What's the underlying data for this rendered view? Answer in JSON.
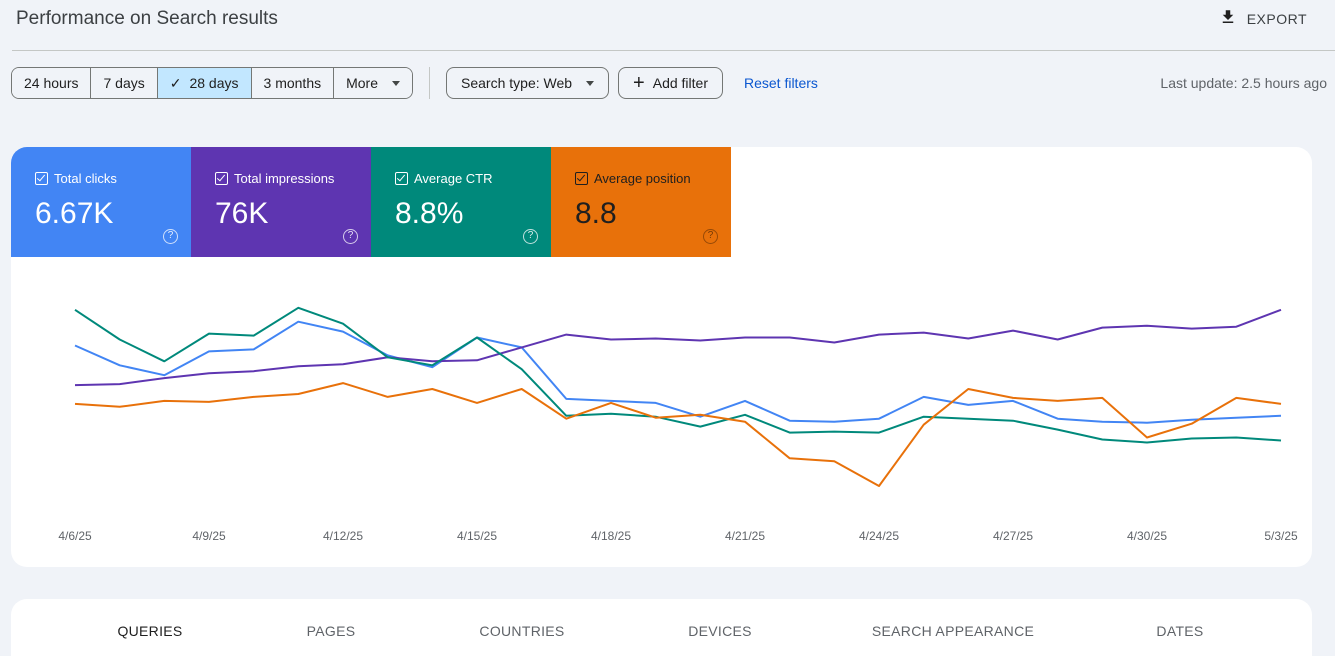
{
  "header": {
    "title": "Performance on Search results",
    "export_label": "EXPORT"
  },
  "filters": {
    "ranges": [
      {
        "label": "24 hours",
        "active": false
      },
      {
        "label": "7 days",
        "active": false
      },
      {
        "label": "28 days",
        "active": true
      },
      {
        "label": "3 months",
        "active": false
      },
      {
        "label": "More",
        "active": false,
        "dropdown": true
      }
    ],
    "search_type": "Search type: Web",
    "add_filter": "Add filter",
    "reset": "Reset filters",
    "last_update": "Last update: 2.5 hours ago"
  },
  "metrics": [
    {
      "label": "Total clicks",
      "value": "6.67K",
      "color": "#4285f4",
      "checked": true
    },
    {
      "label": "Total impressions",
      "value": "76K",
      "color": "#5e35b1",
      "checked": true
    },
    {
      "label": "Average CTR",
      "value": "8.8%",
      "color": "#00897b",
      "checked": true
    },
    {
      "label": "Average position",
      "value": "8.8",
      "color": "#e8710a",
      "checked": true
    }
  ],
  "chart_data": {
    "type": "line",
    "x": [
      "4/6/25",
      "4/7/25",
      "4/8/25",
      "4/9/25",
      "4/10/25",
      "4/11/25",
      "4/12/25",
      "4/13/25",
      "4/14/25",
      "4/15/25",
      "4/16/25",
      "4/17/25",
      "4/18/25",
      "4/19/25",
      "4/20/25",
      "4/21/25",
      "4/22/25",
      "4/23/25",
      "4/24/25",
      "4/25/25",
      "4/26/25",
      "4/27/25",
      "4/28/25",
      "4/29/25",
      "4/30/25",
      "5/1/25",
      "5/2/25",
      "5/3/25"
    ],
    "tick_labels": [
      "4/6/25",
      "4/9/25",
      "4/12/25",
      "4/15/25",
      "4/18/25",
      "4/21/25",
      "4/24/25",
      "4/27/25",
      "4/30/25",
      "5/3/25"
    ],
    "y_axis_visible": false,
    "series": [
      {
        "name": "Total clicks",
        "color": "#4285f4",
        "values": [
          0.73,
          0.63,
          0.58,
          0.7,
          0.71,
          0.85,
          0.8,
          0.68,
          0.62,
          0.77,
          0.72,
          0.46,
          0.45,
          0.44,
          0.37,
          0.45,
          0.35,
          0.345,
          0.36,
          0.47,
          0.43,
          0.45,
          0.36,
          0.345,
          0.34,
          0.355,
          0.365,
          0.375
        ]
      },
      {
        "name": "Total impressions",
        "color": "#5e35b1",
        "values": [
          0.53,
          0.535,
          0.565,
          0.59,
          0.6,
          0.625,
          0.635,
          0.67,
          0.65,
          0.655,
          0.72,
          0.785,
          0.76,
          0.765,
          0.755,
          0.77,
          0.77,
          0.745,
          0.785,
          0.795,
          0.765,
          0.805,
          0.76,
          0.82,
          0.83,
          0.815,
          0.825,
          0.91
        ]
      },
      {
        "name": "Average CTR",
        "color": "#00897b",
        "values": [
          0.91,
          0.76,
          0.65,
          0.79,
          0.78,
          0.92,
          0.84,
          0.67,
          0.63,
          0.77,
          0.61,
          0.375,
          0.385,
          0.37,
          0.32,
          0.38,
          0.29,
          0.295,
          0.29,
          0.37,
          0.36,
          0.35,
          0.305,
          0.255,
          0.24,
          0.26,
          0.265,
          0.25
        ]
      },
      {
        "name": "Average position",
        "color": "#e8710a",
        "values": [
          0.435,
          0.42,
          0.45,
          0.445,
          0.47,
          0.485,
          0.54,
          0.47,
          0.51,
          0.44,
          0.51,
          0.36,
          0.44,
          0.365,
          0.38,
          0.345,
          0.16,
          0.145,
          0.02,
          0.33,
          0.51,
          0.465,
          0.45,
          0.465,
          0.265,
          0.335,
          0.465,
          0.435
        ]
      }
    ]
  },
  "tabs": [
    {
      "label": "QUERIES",
      "active": true
    },
    {
      "label": "PAGES",
      "active": false
    },
    {
      "label": "COUNTRIES",
      "active": false
    },
    {
      "label": "DEVICES",
      "active": false
    },
    {
      "label": "SEARCH APPEARANCE",
      "active": false
    },
    {
      "label": "DATES",
      "active": false
    }
  ]
}
